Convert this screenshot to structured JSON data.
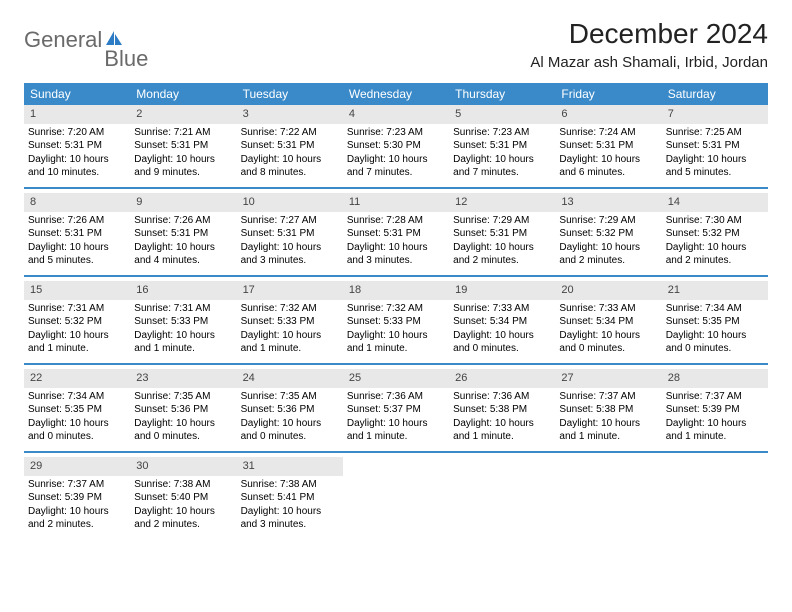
{
  "logo": {
    "text1": "General",
    "text2": "Blue"
  },
  "title": "December 2024",
  "location": "Al Mazar ash Shamali, Irbid, Jordan",
  "weekdays": [
    "Sunday",
    "Monday",
    "Tuesday",
    "Wednesday",
    "Thursday",
    "Friday",
    "Saturday"
  ],
  "colors": {
    "header_bar": "#3a8ac9",
    "day_number_bg": "#e8e8e8",
    "logo_gray": "#6a6a6a",
    "logo_blue": "#2b7cc4",
    "row_border": "#3a8ac9"
  },
  "labels": {
    "sunrise_prefix": "Sunrise: ",
    "sunset_prefix": "Sunset: ",
    "daylight_prefix": "Daylight: "
  },
  "start_offset": 0,
  "days": [
    {
      "n": 1,
      "sunrise": "7:20 AM",
      "sunset": "5:31 PM",
      "daylight": "10 hours and 10 minutes."
    },
    {
      "n": 2,
      "sunrise": "7:21 AM",
      "sunset": "5:31 PM",
      "daylight": "10 hours and 9 minutes."
    },
    {
      "n": 3,
      "sunrise": "7:22 AM",
      "sunset": "5:31 PM",
      "daylight": "10 hours and 8 minutes."
    },
    {
      "n": 4,
      "sunrise": "7:23 AM",
      "sunset": "5:30 PM",
      "daylight": "10 hours and 7 minutes."
    },
    {
      "n": 5,
      "sunrise": "7:23 AM",
      "sunset": "5:31 PM",
      "daylight": "10 hours and 7 minutes."
    },
    {
      "n": 6,
      "sunrise": "7:24 AM",
      "sunset": "5:31 PM",
      "daylight": "10 hours and 6 minutes."
    },
    {
      "n": 7,
      "sunrise": "7:25 AM",
      "sunset": "5:31 PM",
      "daylight": "10 hours and 5 minutes."
    },
    {
      "n": 8,
      "sunrise": "7:26 AM",
      "sunset": "5:31 PM",
      "daylight": "10 hours and 5 minutes."
    },
    {
      "n": 9,
      "sunrise": "7:26 AM",
      "sunset": "5:31 PM",
      "daylight": "10 hours and 4 minutes."
    },
    {
      "n": 10,
      "sunrise": "7:27 AM",
      "sunset": "5:31 PM",
      "daylight": "10 hours and 3 minutes."
    },
    {
      "n": 11,
      "sunrise": "7:28 AM",
      "sunset": "5:31 PM",
      "daylight": "10 hours and 3 minutes."
    },
    {
      "n": 12,
      "sunrise": "7:29 AM",
      "sunset": "5:31 PM",
      "daylight": "10 hours and 2 minutes."
    },
    {
      "n": 13,
      "sunrise": "7:29 AM",
      "sunset": "5:32 PM",
      "daylight": "10 hours and 2 minutes."
    },
    {
      "n": 14,
      "sunrise": "7:30 AM",
      "sunset": "5:32 PM",
      "daylight": "10 hours and 2 minutes."
    },
    {
      "n": 15,
      "sunrise": "7:31 AM",
      "sunset": "5:32 PM",
      "daylight": "10 hours and 1 minute."
    },
    {
      "n": 16,
      "sunrise": "7:31 AM",
      "sunset": "5:33 PM",
      "daylight": "10 hours and 1 minute."
    },
    {
      "n": 17,
      "sunrise": "7:32 AM",
      "sunset": "5:33 PM",
      "daylight": "10 hours and 1 minute."
    },
    {
      "n": 18,
      "sunrise": "7:32 AM",
      "sunset": "5:33 PM",
      "daylight": "10 hours and 1 minute."
    },
    {
      "n": 19,
      "sunrise": "7:33 AM",
      "sunset": "5:34 PM",
      "daylight": "10 hours and 0 minutes."
    },
    {
      "n": 20,
      "sunrise": "7:33 AM",
      "sunset": "5:34 PM",
      "daylight": "10 hours and 0 minutes."
    },
    {
      "n": 21,
      "sunrise": "7:34 AM",
      "sunset": "5:35 PM",
      "daylight": "10 hours and 0 minutes."
    },
    {
      "n": 22,
      "sunrise": "7:34 AM",
      "sunset": "5:35 PM",
      "daylight": "10 hours and 0 minutes."
    },
    {
      "n": 23,
      "sunrise": "7:35 AM",
      "sunset": "5:36 PM",
      "daylight": "10 hours and 0 minutes."
    },
    {
      "n": 24,
      "sunrise": "7:35 AM",
      "sunset": "5:36 PM",
      "daylight": "10 hours and 0 minutes."
    },
    {
      "n": 25,
      "sunrise": "7:36 AM",
      "sunset": "5:37 PM",
      "daylight": "10 hours and 1 minute."
    },
    {
      "n": 26,
      "sunrise": "7:36 AM",
      "sunset": "5:38 PM",
      "daylight": "10 hours and 1 minute."
    },
    {
      "n": 27,
      "sunrise": "7:37 AM",
      "sunset": "5:38 PM",
      "daylight": "10 hours and 1 minute."
    },
    {
      "n": 28,
      "sunrise": "7:37 AM",
      "sunset": "5:39 PM",
      "daylight": "10 hours and 1 minute."
    },
    {
      "n": 29,
      "sunrise": "7:37 AM",
      "sunset": "5:39 PM",
      "daylight": "10 hours and 2 minutes."
    },
    {
      "n": 30,
      "sunrise": "7:38 AM",
      "sunset": "5:40 PM",
      "daylight": "10 hours and 2 minutes."
    },
    {
      "n": 31,
      "sunrise": "7:38 AM",
      "sunset": "5:41 PM",
      "daylight": "10 hours and 3 minutes."
    }
  ]
}
